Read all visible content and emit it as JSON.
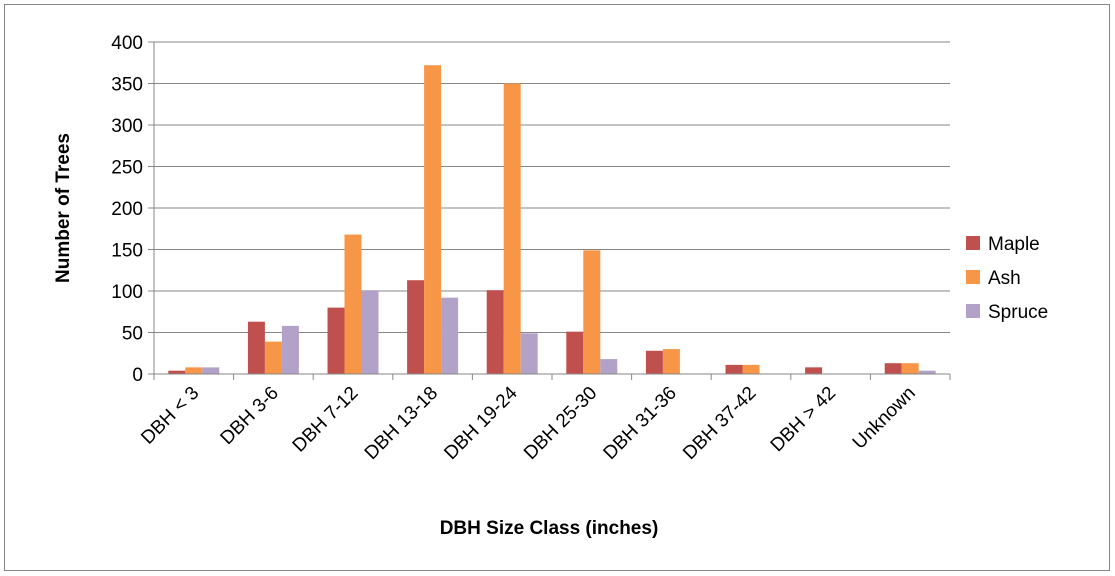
{
  "chart_data": {
    "type": "bar",
    "categories": [
      "DBH < 3",
      "DBH 3-6",
      "DBH 7-12",
      "DBH 13-18",
      "DBH 19-24",
      "DBH 25-30",
      "DBH 31-36",
      "DBH 37-42",
      "DBH > 42",
      "Unknown"
    ],
    "series": [
      {
        "name": "Maple",
        "color": "#C0504D",
        "values": [
          4,
          63,
          80,
          113,
          101,
          51,
          28,
          11,
          8,
          13
        ]
      },
      {
        "name": "Ash",
        "color": "#F79646",
        "values": [
          8,
          39,
          168,
          372,
          350,
          149,
          30,
          11,
          0,
          13
        ]
      },
      {
        "name": "Spruce",
        "color": "#B3A2C7",
        "values": [
          8,
          58,
          101,
          92,
          49,
          18,
          0,
          0,
          0,
          4
        ]
      }
    ],
    "xlabel": "DBH Size Class (inches)",
    "ylabel": "Number of Trees",
    "ylim": [
      0,
      400
    ],
    "yticks": [
      0,
      50,
      100,
      150,
      200,
      250,
      300,
      350,
      400
    ],
    "grid": true,
    "legend_position": "right"
  }
}
